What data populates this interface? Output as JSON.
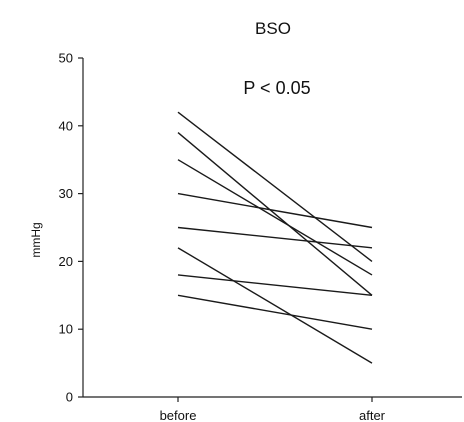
{
  "chart_data": {
    "type": "line",
    "title": "BSO",
    "annotation": "P < 0.05",
    "xlabel": "",
    "ylabel": "mmHg",
    "categories": [
      "before",
      "after"
    ],
    "ylim": [
      0,
      50
    ],
    "yticks": [
      0,
      10,
      20,
      30,
      40,
      50
    ],
    "grid": false,
    "series": [
      {
        "values": [
          42,
          20
        ]
      },
      {
        "values": [
          39,
          15
        ]
      },
      {
        "values": [
          35,
          18
        ]
      },
      {
        "values": [
          30,
          25
        ]
      },
      {
        "values": [
          25,
          22
        ]
      },
      {
        "values": [
          22,
          5
        ]
      },
      {
        "values": [
          18,
          15
        ]
      },
      {
        "values": [
          15,
          10
        ]
      }
    ]
  }
}
